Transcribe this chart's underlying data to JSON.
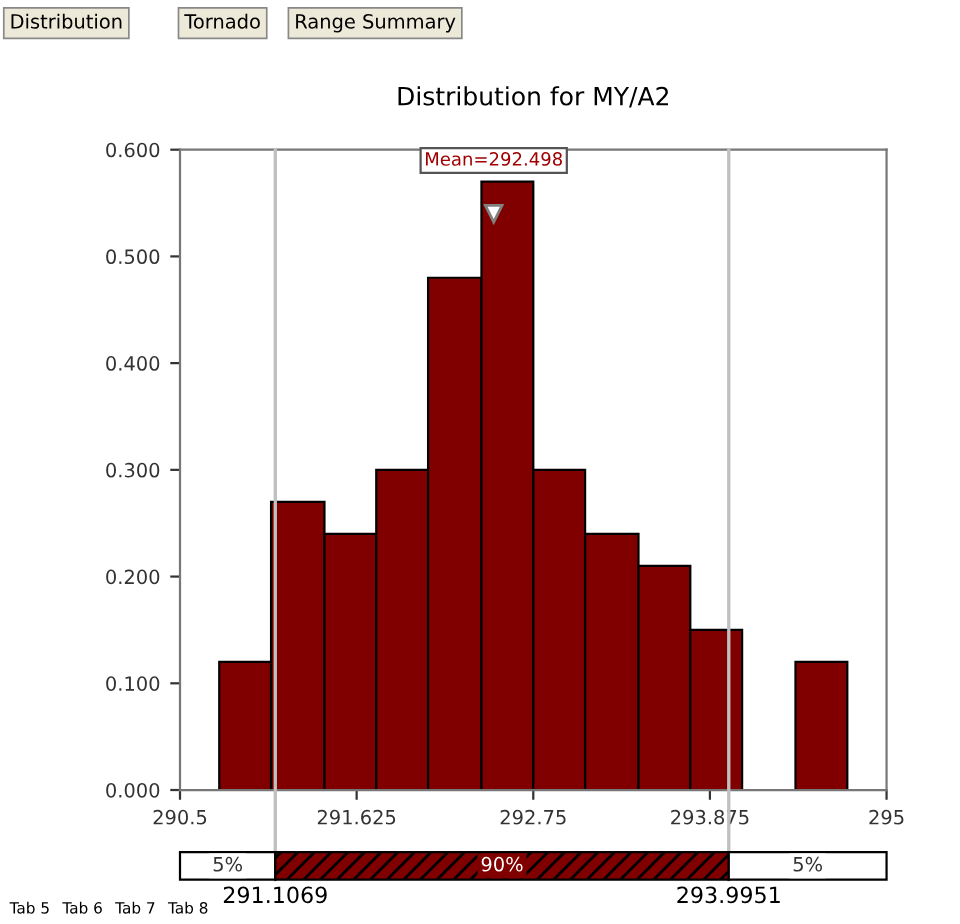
{
  "chart_data": {
    "type": "histogram",
    "title": "Distribution for MY/A2",
    "bins": [
      290.75,
      291.08,
      291.42,
      291.75,
      292.08,
      292.42,
      292.75,
      293.08,
      293.42,
      293.75,
      294.08,
      294.42,
      294.75
    ],
    "values": [
      0.12,
      0.27,
      0.24,
      0.3,
      0.48,
      0.57,
      0.3,
      0.24,
      0.21,
      0.15,
      0,
      0.12
    ],
    "color": "#800000",
    "xlim": [
      290.5,
      295
    ],
    "xticks": [
      290.5,
      291.625,
      292.75,
      293.875,
      295
    ],
    "ylim": [
      0,
      0.6
    ],
    "yticks": [
      {
        "value": 0,
        "label": "0.000"
      },
      {
        "value": 0.1,
        "label": "0.100"
      },
      {
        "value": 0.2,
        "label": "0.200"
      },
      {
        "value": 0.3,
        "label": "0.300"
      },
      {
        "value": 0.4,
        "label": "0.400"
      },
      {
        "value": 0.5,
        "label": "0.500"
      },
      {
        "value": 0.6,
        "label": "0.600"
      }
    ],
    "grid": false,
    "ref_lines": [
      {
        "axis": "x",
        "value": 291.1069,
        "label": "291.1069",
        "color": "#c0c0c0"
      },
      {
        "axis": "x",
        "value": 293.9951,
        "label": "293.9951",
        "color": "#c0c0c0"
      }
    ],
    "annotations": [
      "Distribution",
      "Tornado",
      "Range Summary",
      {
        "text": "Mean=292.498",
        "x": 292.498,
        "y": 0.54
      },
      "5%",
      "90%",
      "5%",
      "Tab 5",
      "Tab 6",
      "Tab 7",
      "Tab 8"
    ]
  }
}
